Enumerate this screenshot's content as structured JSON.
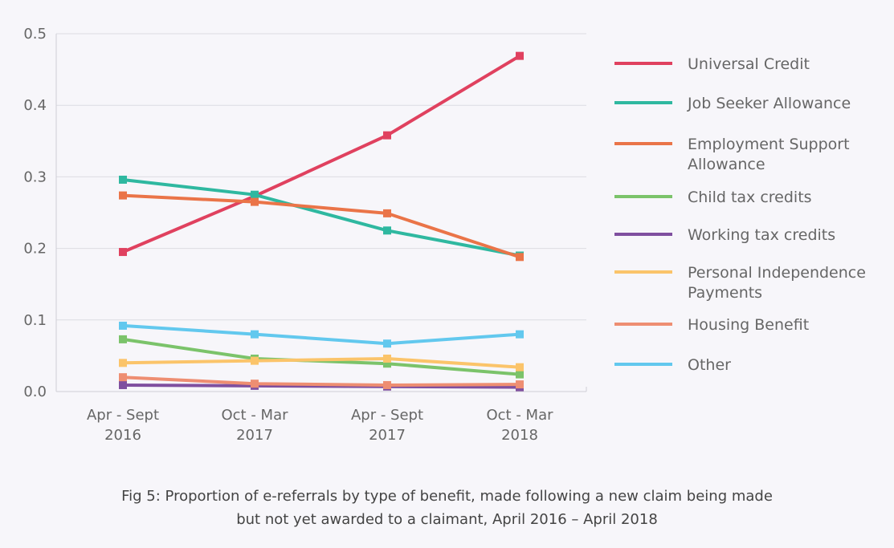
{
  "chart_data": {
    "type": "line",
    "title": "",
    "xlabel": "",
    "ylabel": "",
    "ylim": [
      0,
      0.5
    ],
    "yticks": [
      "0.0",
      "0.1",
      "0.2",
      "0.3",
      "0.4",
      "0.5"
    ],
    "categories": [
      [
        "Apr - Sept",
        "2016"
      ],
      [
        "Oct - Mar",
        "2017"
      ],
      [
        "Apr - Sept",
        "2017"
      ],
      [
        "Oct - Mar",
        "2018"
      ]
    ],
    "series": [
      {
        "name": "Universal Credit",
        "legend_lines": [
          "Universal Credit"
        ],
        "color": "#e0415f",
        "values": [
          0.195,
          0.273,
          0.358,
          0.469
        ]
      },
      {
        "name": "Job Seeker Allowance",
        "legend_lines": [
          "Job Seeker Allowance"
        ],
        "color": "#2fb8a0",
        "values": [
          0.296,
          0.275,
          0.225,
          0.19
        ]
      },
      {
        "name": "Employment Support Allowance",
        "legend_lines": [
          "Employment Support",
          "Allowance"
        ],
        "color": "#ea7448",
        "values": [
          0.274,
          0.265,
          0.249,
          0.188
        ]
      },
      {
        "name": "Child tax credits",
        "legend_lines": [
          "Child tax credits"
        ],
        "color": "#7bc36a",
        "values": [
          0.073,
          0.046,
          0.039,
          0.024
        ]
      },
      {
        "name": "Working tax credits",
        "legend_lines": [
          "Working tax credits"
        ],
        "color": "#7f4f9f",
        "values": [
          0.009,
          0.008,
          0.007,
          0.006
        ]
      },
      {
        "name": "Personal Independence Payments",
        "legend_lines": [
          "Personal Independence",
          "Payments"
        ],
        "color": "#fbc46a",
        "values": [
          0.04,
          0.043,
          0.046,
          0.034
        ]
      },
      {
        "name": "Housing Benefit",
        "legend_lines": [
          "Housing Benefit"
        ],
        "color": "#ee8e72",
        "values": [
          0.02,
          0.011,
          0.009,
          0.01
        ]
      },
      {
        "name": "Other",
        "legend_lines": [
          "Other"
        ],
        "color": "#62c8ee",
        "values": [
          0.092,
          0.08,
          0.067,
          0.08
        ]
      }
    ],
    "caption": [
      "Fig 5: Proportion of e-referrals by type of benefit, made following a new claim being made",
      "but not yet awarded to a claimant, April 2016 – April 2018"
    ],
    "legend_position": "right",
    "grid": true
  }
}
